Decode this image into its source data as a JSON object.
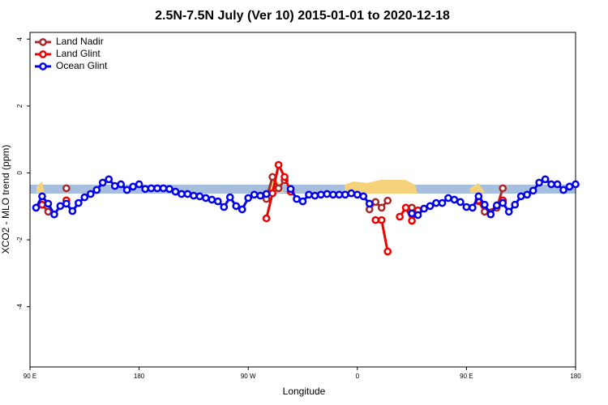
{
  "chart_data": {
    "type": "line",
    "title": "2.5N-7.5N July (Ver 10)   2015-01-01 to 2020-12-18",
    "x_label": "Longitude",
    "y_label": "XCO2 - MLO trend (ppm)",
    "xlim": [
      90,
      540
    ],
    "ylim": [
      -5.8,
      4.2
    ],
    "xticks": [
      {
        "value": 90,
        "label": "90 E"
      },
      180,
      {
        "value": 270,
        "label": "90 W"
      },
      {
        "value": 360,
        "label": "0"
      },
      {
        "value": 450,
        "label": "90 E"
      },
      {
        "value": 540,
        "label": "180"
      }
    ],
    "yticks": [
      -4,
      -2,
      0,
      2,
      4
    ],
    "legend": "top-left",
    "series": [
      {
        "name": "Land Nadir",
        "color": "#a52a2a",
        "x": [
          100,
          105,
          110,
          120,
          125,
          285,
          290,
          295,
          300,
          305,
          370,
          375,
          380,
          385,
          390,
          405,
          410,
          460,
          465,
          475,
          480
        ],
        "values": [
          -0.95,
          -1.16,
          null,
          -0.46,
          null,
          -0.78,
          -0.12,
          -0.46,
          -0.22,
          null,
          -1.09,
          -0.87,
          -1.04,
          -0.83,
          null,
          -1.04,
          null,
          -0.85,
          -1.16,
          -1.04,
          -0.46
        ]
      },
      {
        "name": "Land Glint",
        "color": "#ee0000",
        "x": [
          100,
          105,
          120,
          125,
          285,
          290,
          295,
          300,
          305,
          310,
          375,
          380,
          385,
          390,
          395,
          400,
          405,
          410,
          415,
          460,
          465,
          480
        ],
        "values": [
          -0.95,
          null,
          -0.82,
          null,
          -1.36,
          -0.61,
          0.24,
          -0.12,
          -0.56,
          null,
          -1.41,
          -1.41,
          -2.35,
          null,
          -1.31,
          -1.04,
          -1.43,
          -1.12,
          null,
          -0.82,
          null,
          -0.82
        ]
      },
      {
        "name": "Ocean Glint",
        "color": "#0000ee",
        "x": [
          95,
          100,
          105,
          110,
          115,
          120,
          125,
          130,
          135,
          140,
          145,
          150,
          155,
          160,
          165,
          170,
          175,
          180,
          185,
          190,
          195,
          200,
          205,
          210,
          215,
          220,
          225,
          230,
          235,
          240,
          245,
          250,
          255,
          260,
          265,
          270,
          275,
          280,
          285,
          295,
          305,
          310,
          315,
          320,
          325,
          330,
          335,
          340,
          345,
          350,
          355,
          360,
          365,
          370,
          385,
          405,
          410,
          415,
          420,
          425,
          430,
          435,
          440,
          445,
          450,
          455,
          460,
          465,
          470,
          475,
          480,
          485,
          490,
          495,
          500,
          505,
          510,
          515,
          520,
          525,
          530,
          535,
          540
        ],
        "values": [
          -1.04,
          -0.7,
          -0.92,
          -1.24,
          -0.99,
          -0.92,
          -1.14,
          -0.9,
          -0.73,
          -0.63,
          -0.51,
          -0.29,
          -0.19,
          -0.39,
          -0.34,
          -0.51,
          -0.41,
          -0.34,
          -0.48,
          -0.46,
          -0.46,
          -0.46,
          -0.48,
          -0.56,
          -0.63,
          -0.63,
          -0.68,
          -0.7,
          -0.75,
          -0.8,
          -0.85,
          -1.02,
          -0.73,
          -0.99,
          -1.09,
          -0.75,
          -0.65,
          -0.68,
          -0.63,
          null,
          -0.48,
          -0.78,
          -0.85,
          -0.65,
          -0.68,
          -0.65,
          -0.63,
          -0.65,
          -0.65,
          -0.65,
          -0.61,
          -0.65,
          -0.7,
          -0.92,
          null,
          -1.21,
          -1.26,
          -1.07,
          -0.99,
          -0.9,
          -0.9,
          -0.75,
          -0.8,
          -0.87,
          -1.02,
          -1.04,
          -0.7,
          -0.95,
          -1.24,
          -0.97,
          -0.9,
          -1.16,
          -0.95,
          -0.7,
          -0.65,
          -0.53,
          -0.29,
          -0.19,
          -0.34,
          -0.34,
          -0.51,
          -0.41,
          -0.34
        ]
      }
    ]
  }
}
